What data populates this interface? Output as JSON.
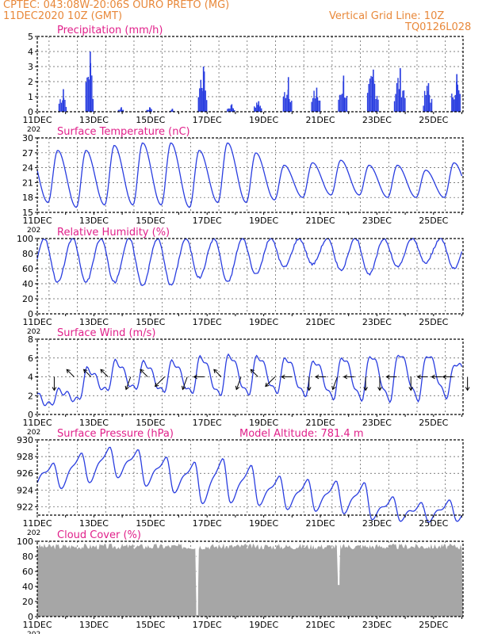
{
  "header": {
    "line1": "CPTEC:   043:08W-20:06S   OURO PRETO (MG)",
    "line2": "11DEC2020 10Z (GMT)",
    "grid_note": "Vertical Grid Line: 10Z",
    "code": "TQ0126L028"
  },
  "colors": {
    "header": "#e8883a",
    "panel_title": "#e0208a",
    "line": "#2a3ee0",
    "cloud": "#a6a6a6",
    "arrow": "#000000"
  },
  "x_ticks": [
    "11DEC",
    "13DEC",
    "15DEC",
    "17DEC",
    "19DEC",
    "21DEC",
    "23DEC",
    "25DEC"
  ],
  "year_stub": "202",
  "chart_data": [
    {
      "id": "precip",
      "type": "bar",
      "title": "Precipitation (mm/h)",
      "ylim": [
        0,
        5
      ],
      "yticks": [
        0,
        1,
        2,
        3,
        4,
        5
      ],
      "grid": true,
      "x_unit": "days since 11DEC 00Z",
      "events": [
        {
          "x": 0.9,
          "peak": 1.5,
          "width": 0.3
        },
        {
          "x": 1.85,
          "peak": 4.0,
          "width": 0.3
        },
        {
          "x": 2.95,
          "peak": 0.3,
          "width": 0.2
        },
        {
          "x": 3.95,
          "peak": 0.3,
          "width": 0.2
        },
        {
          "x": 4.75,
          "peak": 0.2,
          "width": 0.15
        },
        {
          "x": 5.85,
          "peak": 3.0,
          "width": 0.35
        },
        {
          "x": 6.85,
          "peak": 0.5,
          "width": 0.3
        },
        {
          "x": 7.8,
          "peak": 0.7,
          "width": 0.3
        },
        {
          "x": 8.85,
          "peak": 2.3,
          "width": 0.35
        },
        {
          "x": 9.85,
          "peak": 1.6,
          "width": 0.35
        },
        {
          "x": 10.8,
          "peak": 2.4,
          "width": 0.35
        },
        {
          "x": 11.85,
          "peak": 2.8,
          "width": 0.4
        },
        {
          "x": 12.8,
          "peak": 2.9,
          "width": 0.4
        },
        {
          "x": 13.8,
          "peak": 1.9,
          "width": 0.35
        },
        {
          "x": 14.8,
          "peak": 2.5,
          "width": 0.35
        }
      ]
    },
    {
      "id": "temp",
      "type": "line",
      "title": "Surface Temperature (nC)",
      "ylim": [
        15,
        30
      ],
      "yticks": [
        15,
        18,
        21,
        24,
        27,
        30
      ],
      "grid": true,
      "x_unit": "days since 11DEC 00Z",
      "daily_max": [
        27.5,
        27.5,
        28.5,
        29,
        29,
        27.5,
        29,
        27,
        24.5,
        25,
        25.5,
        24.5,
        24.5,
        23.5,
        25,
        25
      ],
      "daily_min": [
        17,
        16,
        16.5,
        16.5,
        16.5,
        16,
        17,
        17,
        17.5,
        18,
        18.5,
        18.5,
        18,
        18,
        18,
        18
      ]
    },
    {
      "id": "rh",
      "type": "line",
      "title": "Relative Humidity (%)",
      "ylim": [
        0,
        100
      ],
      "yticks": [
        0,
        20,
        40,
        60,
        80,
        100
      ],
      "grid": true,
      "x_unit": "days since 11DEC 00Z",
      "daily_min": [
        42,
        42,
        42,
        38,
        38,
        48,
        42,
        52,
        62,
        66,
        58,
        52,
        62,
        68,
        60,
        58
      ]
    },
    {
      "id": "wind",
      "type": "line",
      "title": "Surface Wind (m/s)",
      "ylim": [
        0,
        8
      ],
      "yticks": [
        0,
        2,
        4,
        6,
        8
      ],
      "grid": true,
      "x_unit": "days since 11DEC 00Z",
      "daily_max": [
        2.5,
        4.8,
        5.6,
        5.5,
        5.6,
        6.1,
        6.3,
        6.2,
        6.0,
        5.7,
        6.1,
        6.3,
        6.5,
        6.4,
        5.5,
        4.8
      ],
      "daily_min": [
        1.0,
        1.5,
        2.5,
        2.7,
        2.4,
        2.3,
        2.1,
        2.2,
        2.4,
        2.1,
        1.8,
        1.7,
        1.6,
        1.7,
        2.0,
        2.6
      ],
      "arrows": [
        {
          "x": 0.6,
          "dir": "S"
        },
        {
          "x": 1.3,
          "dir": "NW"
        },
        {
          "x": 1.9,
          "dir": "NW"
        },
        {
          "x": 2.5,
          "dir": "NW"
        },
        {
          "x": 3.3,
          "dir": "SSW"
        },
        {
          "x": 3.9,
          "dir": "NW"
        },
        {
          "x": 4.5,
          "dir": "SW"
        },
        {
          "x": 5.3,
          "dir": "SSW"
        },
        {
          "x": 5.9,
          "dir": "W"
        },
        {
          "x": 6.5,
          "dir": "NW"
        },
        {
          "x": 7.2,
          "dir": "SSW"
        },
        {
          "x": 7.8,
          "dir": "NW"
        },
        {
          "x": 8.4,
          "dir": "SW"
        },
        {
          "x": 9.0,
          "dir": "W"
        },
        {
          "x": 9.6,
          "dir": "S"
        },
        {
          "x": 10.2,
          "dir": "W"
        },
        {
          "x": 10.6,
          "dir": "SSW"
        },
        {
          "x": 11.2,
          "dir": "W"
        },
        {
          "x": 11.6,
          "dir": "S"
        },
        {
          "x": 12.1,
          "dir": "S"
        },
        {
          "x": 12.7,
          "dir": "W"
        },
        {
          "x": 13.2,
          "dir": "S"
        },
        {
          "x": 13.8,
          "dir": "W"
        },
        {
          "x": 14.3,
          "dir": "W"
        },
        {
          "x": 14.7,
          "dir": "W"
        },
        {
          "x": 15.2,
          "dir": "S"
        }
      ]
    },
    {
      "id": "pres",
      "type": "line",
      "title": "Surface Pressure (hPa)",
      "title2": "Model Altitude: 781.4  m",
      "ylim": [
        921,
        930
      ],
      "yticks": [
        922,
        924,
        926,
        928,
        930
      ],
      "grid": true,
      "x_unit": "days since 11DEC 00Z",
      "daily_max": [
        927.0,
        928.2,
        928.9,
        928.6,
        927.7,
        927.1,
        927.5,
        926.7,
        925.4,
        925.0,
        924.8,
        924.6,
        922.9,
        922.2,
        922.5,
        922.0
      ],
      "daily_min": [
        924.5,
        925.2,
        925.8,
        924.8,
        924.0,
        922.7,
        922.8,
        922.5,
        922.0,
        921.8,
        921.5,
        920.8,
        920.6,
        920.5,
        920.6,
        920.4
      ]
    },
    {
      "id": "cloud",
      "type": "area",
      "title": "Cloud Cover (%)",
      "ylim": [
        0,
        100
      ],
      "yticks": [
        0,
        20,
        40,
        60,
        80,
        100
      ],
      "grid": true,
      "x_unit": "days since 11DEC 00Z",
      "base_cover": 93,
      "clear_gaps": [
        {
          "x": 5.65,
          "value": 2
        },
        {
          "x": 10.65,
          "value": 42
        }
      ]
    }
  ]
}
